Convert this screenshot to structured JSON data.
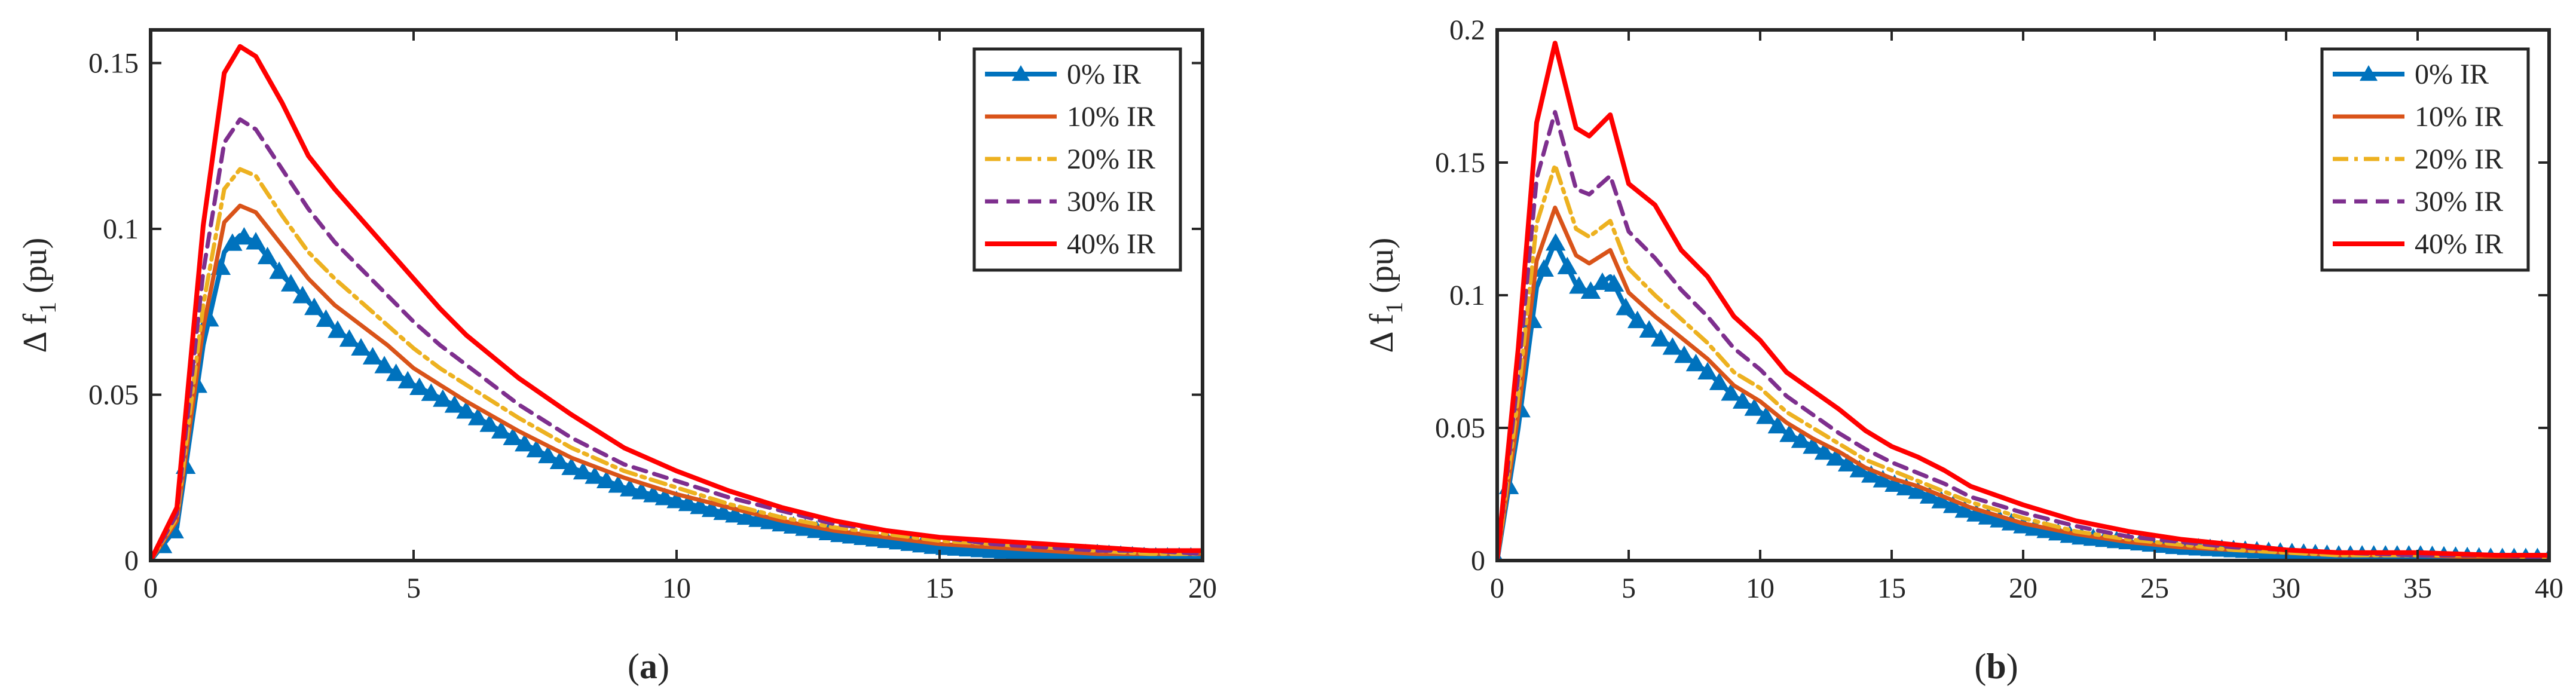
{
  "chart_data": [
    {
      "type": "line",
      "caption_letter": "a",
      "title": "",
      "xlabel": "",
      "ylabel": "Δ f",
      "ylabel_subscript": "1",
      "ylabel_unit": "(pu)",
      "xlim": [
        0,
        20
      ],
      "ylim": [
        0,
        0.16
      ],
      "xticks": [
        0,
        5,
        10,
        15,
        20
      ],
      "xtick_labels": [
        "0",
        "5",
        "10",
        "15",
        "20"
      ],
      "yticks": [
        0,
        0.05,
        0.1,
        0.15
      ],
      "ytick_labels": [
        "0",
        "0.05",
        "0.1",
        "0.15"
      ],
      "legend_position": "top-right",
      "x": [
        0,
        0.5,
        1.0,
        1.4,
        1.7,
        2.0,
        2.5,
        3.0,
        3.5,
        4.0,
        4.5,
        5.0,
        5.5,
        6.0,
        7.0,
        8.0,
        9.0,
        10.0,
        11.0,
        12.0,
        13.0,
        14.0,
        15.0,
        16.0,
        17.0,
        18.0,
        19.0,
        20.0
      ],
      "series": [
        {
          "name": "0% IR",
          "values": [
            0,
            0.01,
            0.065,
            0.093,
            0.098,
            0.096,
            0.086,
            0.078,
            0.07,
            0.064,
            0.058,
            0.053,
            0.049,
            0.045,
            0.036,
            0.028,
            0.022,
            0.018,
            0.014,
            0.011,
            0.008,
            0.006,
            0.004,
            0.003,
            0.002,
            0.002,
            0.001,
            0.001
          ]
        },
        {
          "name": "10% IR",
          "values": [
            0,
            0.012,
            0.07,
            0.102,
            0.107,
            0.105,
            0.095,
            0.085,
            0.077,
            0.071,
            0.065,
            0.058,
            0.053,
            0.048,
            0.039,
            0.031,
            0.025,
            0.02,
            0.016,
            0.012,
            0.009,
            0.007,
            0.005,
            0.004,
            0.003,
            0.002,
            0.002,
            0.002
          ]
        },
        {
          "name": "20% IR",
          "values": [
            0,
            0.013,
            0.077,
            0.112,
            0.118,
            0.116,
            0.104,
            0.093,
            0.085,
            0.078,
            0.071,
            0.064,
            0.058,
            0.053,
            0.043,
            0.034,
            0.027,
            0.022,
            0.017,
            0.013,
            0.01,
            0.008,
            0.006,
            0.005,
            0.004,
            0.003,
            0.002,
            0.002
          ]
        },
        {
          "name": "30% IR",
          "values": [
            0,
            0.014,
            0.087,
            0.126,
            0.133,
            0.13,
            0.118,
            0.106,
            0.096,
            0.088,
            0.08,
            0.072,
            0.065,
            0.059,
            0.047,
            0.037,
            0.029,
            0.024,
            0.019,
            0.015,
            0.011,
            0.009,
            0.007,
            0.005,
            0.004,
            0.003,
            0.003,
            0.002
          ]
        },
        {
          "name": "40% IR",
          "values": [
            0,
            0.016,
            0.101,
            0.147,
            0.155,
            0.152,
            0.138,
            0.122,
            0.112,
            0.103,
            0.094,
            0.085,
            0.076,
            0.068,
            0.055,
            0.044,
            0.034,
            0.027,
            0.021,
            0.016,
            0.012,
            0.009,
            0.007,
            0.006,
            0.005,
            0.004,
            0.003,
            0.003
          ]
        }
      ]
    },
    {
      "type": "line",
      "caption_letter": "b",
      "title": "",
      "xlabel": "",
      "ylabel": "Δ f",
      "ylabel_subscript": "1",
      "ylabel_unit": "(pu)",
      "xlim": [
        0,
        40
      ],
      "ylim": [
        0,
        0.2
      ],
      "xticks": [
        0,
        5,
        10,
        15,
        20,
        25,
        30,
        35,
        40
      ],
      "xtick_labels": [
        "0",
        "5",
        "10",
        "15",
        "20",
        "25",
        "30",
        "35",
        "40"
      ],
      "yticks": [
        0,
        0.05,
        0.1,
        0.15,
        0.2
      ],
      "ytick_labels": [
        "0",
        "0.05",
        "0.1",
        "0.15",
        "0.2"
      ],
      "legend_position": "top-right",
      "x": [
        0,
        0.8,
        1.5,
        2.2,
        3.0,
        3.5,
        4.3,
        5.0,
        6.0,
        7.0,
        8.0,
        9.0,
        10.0,
        11.0,
        12.0,
        13.0,
        14.0,
        15.0,
        16.0,
        17.0,
        18.0,
        20.0,
        22.0,
        24.0,
        26.0,
        28.0,
        30.0,
        32.0,
        35.0,
        38.0,
        40.0
      ],
      "series": [
        {
          "name": "0% IR",
          "values": [
            0,
            0.05,
            0.103,
            0.12,
            0.104,
            0.101,
            0.107,
            0.093,
            0.085,
            0.078,
            0.071,
            0.062,
            0.056,
            0.048,
            0.043,
            0.038,
            0.033,
            0.029,
            0.026,
            0.022,
            0.018,
            0.013,
            0.009,
            0.007,
            0.005,
            0.004,
            0.003,
            0.002,
            0.002,
            0.001,
            0.001
          ]
        },
        {
          "name": "10% IR",
          "values": [
            0,
            0.055,
            0.113,
            0.133,
            0.115,
            0.112,
            0.117,
            0.101,
            0.092,
            0.084,
            0.076,
            0.066,
            0.06,
            0.052,
            0.046,
            0.041,
            0.035,
            0.031,
            0.028,
            0.024,
            0.02,
            0.014,
            0.01,
            0.007,
            0.005,
            0.004,
            0.003,
            0.002,
            0.002,
            0.001,
            0.001
          ]
        },
        {
          "name": "20% IR",
          "values": [
            0,
            0.062,
            0.127,
            0.149,
            0.125,
            0.122,
            0.128,
            0.11,
            0.1,
            0.091,
            0.082,
            0.071,
            0.065,
            0.056,
            0.05,
            0.044,
            0.038,
            0.034,
            0.03,
            0.026,
            0.022,
            0.016,
            0.011,
            0.008,
            0.006,
            0.004,
            0.003,
            0.002,
            0.002,
            0.002,
            0.001
          ]
        },
        {
          "name": "30% IR",
          "values": [
            0,
            0.07,
            0.144,
            0.169,
            0.14,
            0.138,
            0.145,
            0.124,
            0.114,
            0.102,
            0.092,
            0.08,
            0.072,
            0.062,
            0.055,
            0.048,
            0.042,
            0.037,
            0.033,
            0.029,
            0.024,
            0.018,
            0.013,
            0.009,
            0.007,
            0.005,
            0.004,
            0.003,
            0.002,
            0.002,
            0.001
          ]
        },
        {
          "name": "40% IR",
          "values": [
            0,
            0.08,
            0.165,
            0.195,
            0.163,
            0.16,
            0.168,
            0.142,
            0.134,
            0.117,
            0.107,
            0.092,
            0.083,
            0.071,
            0.064,
            0.057,
            0.049,
            0.043,
            0.039,
            0.034,
            0.028,
            0.021,
            0.015,
            0.011,
            0.008,
            0.006,
            0.004,
            0.003,
            0.003,
            0.002,
            0.002
          ]
        }
      ]
    }
  ],
  "series_style": [
    {
      "color": "#0072BD",
      "dash": "",
      "marker": "triangle",
      "width": 8
    },
    {
      "color": "#D95319",
      "dash": "",
      "marker": "none",
      "width": 7
    },
    {
      "color": "#EDB120",
      "dash": "26,10,6,10",
      "marker": "none",
      "width": 7
    },
    {
      "color": "#7E2F8E",
      "dash": "22,14",
      "marker": "none",
      "width": 7
    },
    {
      "color": "#FF0000",
      "dash": "",
      "marker": "none",
      "width": 8
    }
  ]
}
